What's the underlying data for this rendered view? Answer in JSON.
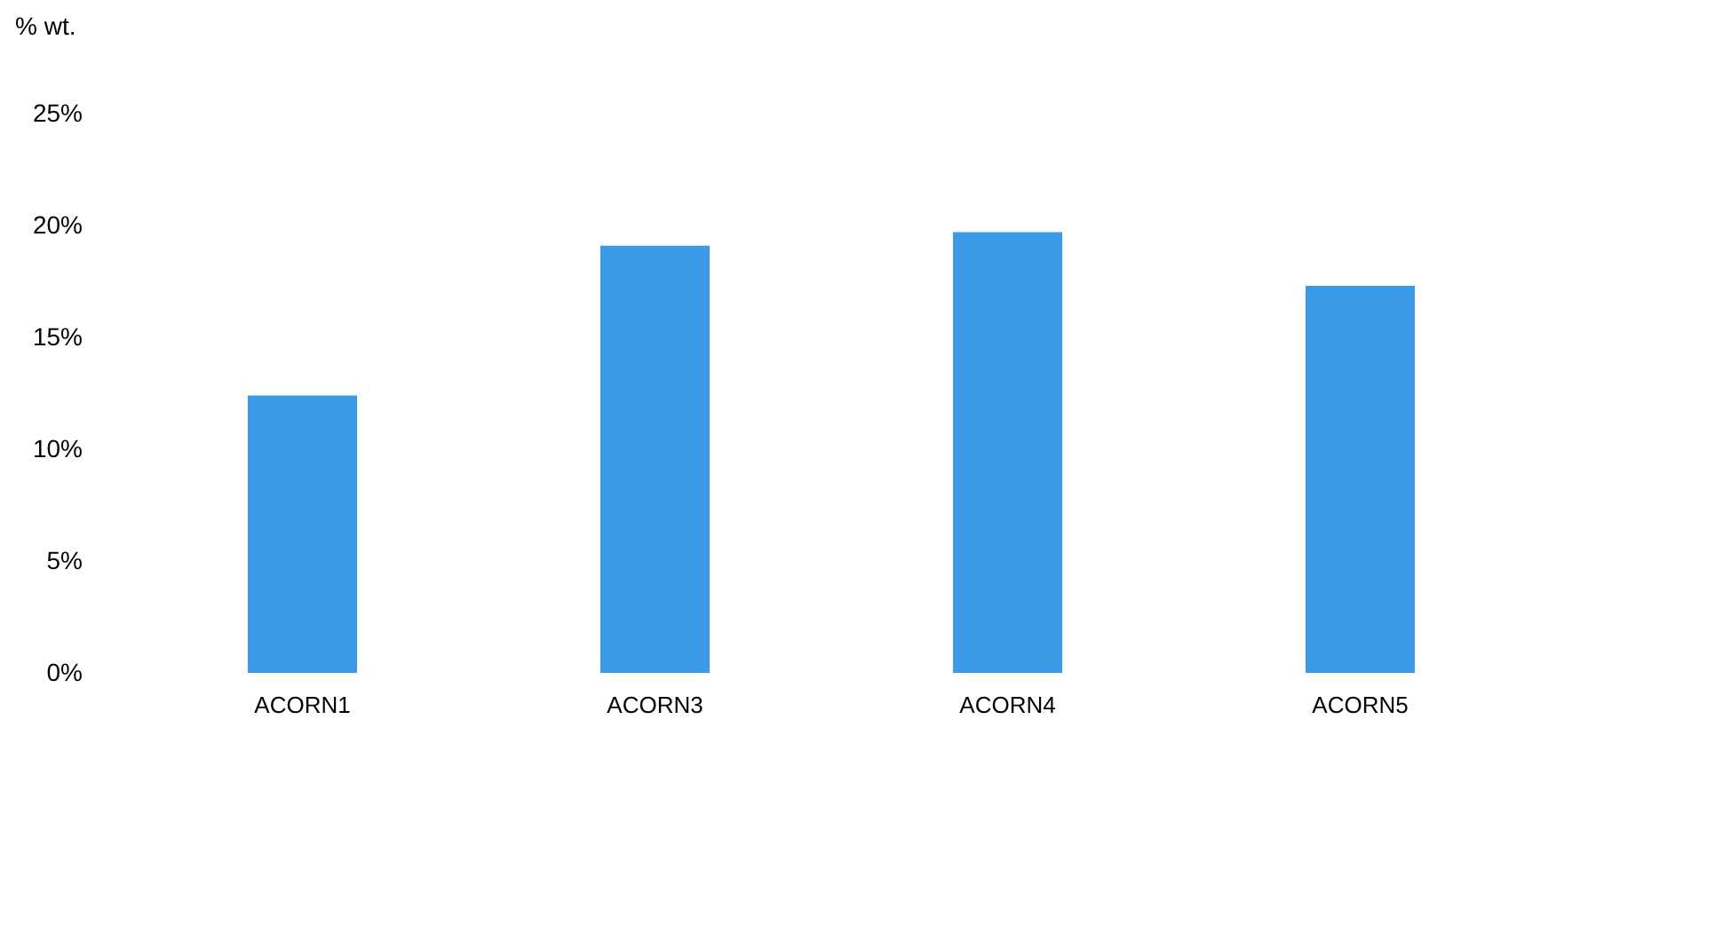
{
  "chart_data": {
    "type": "bar",
    "ylabel": "% wt.",
    "categories": [
      "ACORN1",
      "ACORN3",
      "ACORN4",
      "ACORN5"
    ],
    "values": [
      12.4,
      19.1,
      19.7,
      17.3
    ],
    "color": "#3c9ae6",
    "ylim": [
      0,
      25
    ],
    "yticks": [
      {
        "value": 0,
        "label": "0%"
      },
      {
        "value": 5,
        "label": "5%"
      },
      {
        "value": 10,
        "label": "10%"
      },
      {
        "value": 15,
        "label": "15%"
      },
      {
        "value": 20,
        "label": "20%"
      },
      {
        "value": 25,
        "label": "25%"
      }
    ],
    "grid": false
  }
}
